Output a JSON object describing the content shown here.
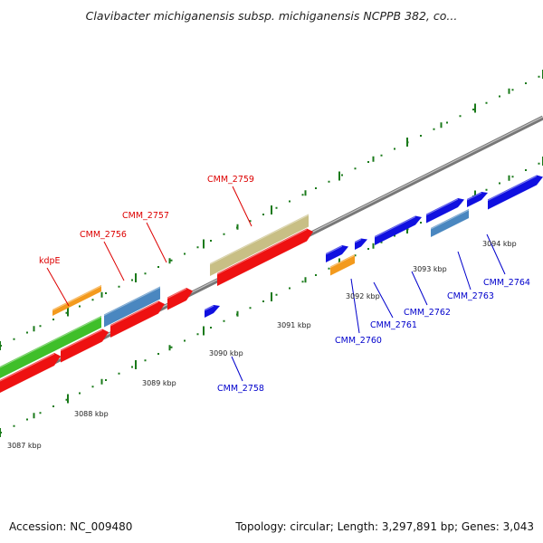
{
  "title": "Clavibacter michiganensis subsp. michiganensis NCPPB 382, co...",
  "colors": {
    "forward_label": "#dd0000",
    "reverse_label": "#0000cc",
    "backbone": "#777777",
    "tick": "#1a7a1a"
  },
  "axis_ticks": [
    "3087 kbp",
    "3088 kbp",
    "3089 kbp",
    "3090 kbp",
    "3091 kbp",
    "3092 kbp",
    "3093 kbp",
    "3094 kbp"
  ],
  "genes_labeled": [
    {
      "name": "kdpE",
      "strand": "forward"
    },
    {
      "name": "CMM_2756",
      "strand": "forward"
    },
    {
      "name": "CMM_2757",
      "strand": "forward"
    },
    {
      "name": "CMM_2759",
      "strand": "forward"
    },
    {
      "name": "CMM_2758",
      "strand": "reverse"
    },
    {
      "name": "CMM_2760",
      "strand": "reverse"
    },
    {
      "name": "CMM_2761",
      "strand": "reverse"
    },
    {
      "name": "CMM_2762",
      "strand": "reverse"
    },
    {
      "name": "CMM_2763",
      "strand": "reverse"
    },
    {
      "name": "CMM_2764",
      "strand": "reverse"
    }
  ],
  "footer": {
    "accession": "Accession: NC_009480",
    "summary": "Topology: circular; Length: 3,297,891 bp; Genes: 3,043"
  }
}
